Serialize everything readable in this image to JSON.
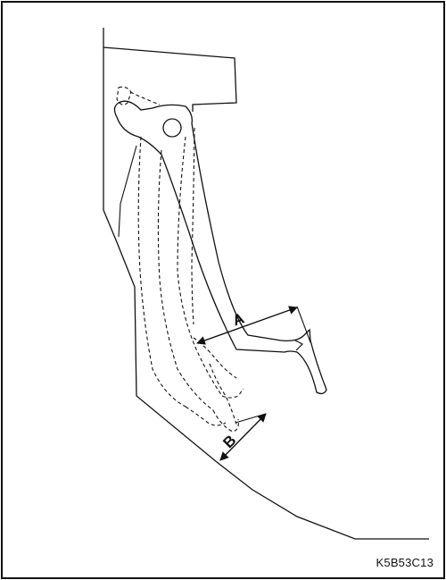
{
  "figure": {
    "code": "K5B53C13",
    "dimension_labels": {
      "a": "A",
      "b": "B"
    }
  },
  "colors": {
    "line": "#111111",
    "background": "#ffffff"
  }
}
